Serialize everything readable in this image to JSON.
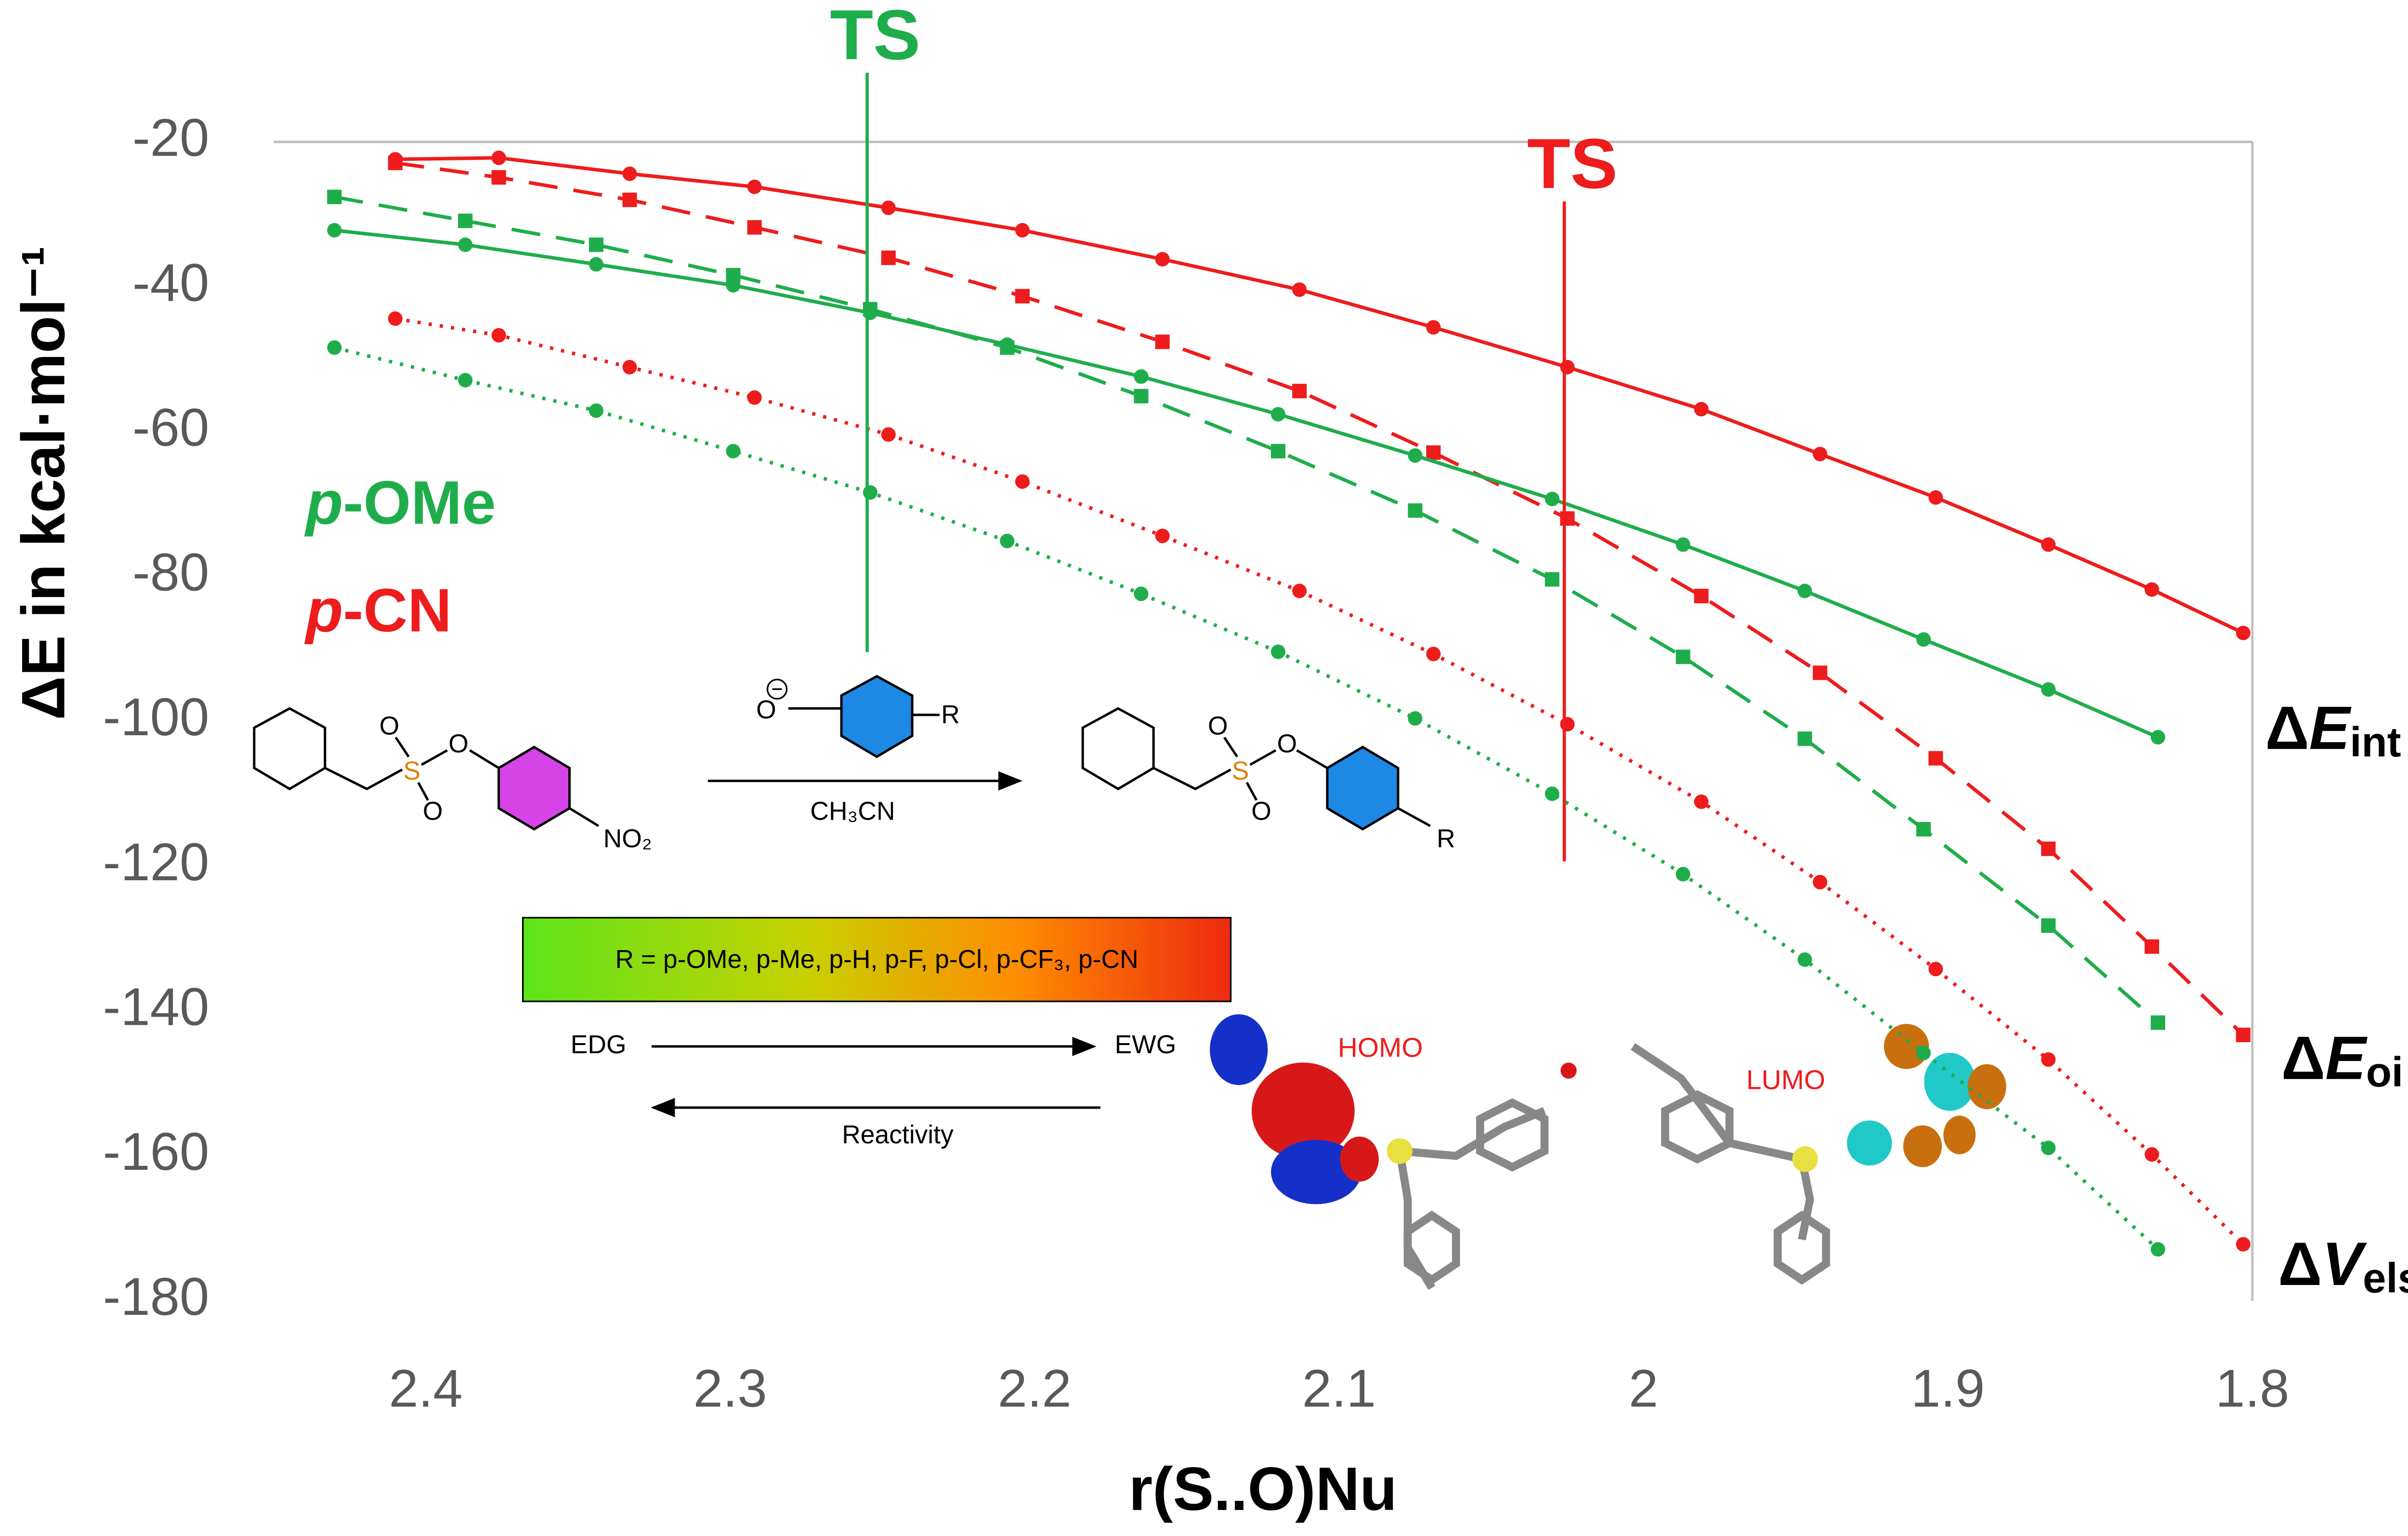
{
  "chart_data": {
    "type": "line",
    "x_label": "r(S..O)Nu",
    "y_label": "ΔE in kcal·mol⁻¹",
    "xlim": [
      2.45,
      1.8
    ],
    "xticks": [
      2.4,
      2.3,
      2.2,
      2.1,
      2,
      1.9,
      1.8
    ],
    "ylim": [
      -180,
      -20
    ],
    "yticks": [
      -180,
      -160,
      -140,
      -120,
      -100,
      -80,
      -60,
      -40,
      -20
    ],
    "grid": false,
    "series": [
      {
        "color": "#ee1c1c",
        "style": "solid",
        "marker": "circle",
        "x": [
          2.41,
          2.376,
          2.333,
          2.292,
          2.248,
          2.204,
          2.158,
          2.113,
          2.069,
          2.025,
          1.981,
          1.942,
          1.904,
          1.867,
          1.833,
          1.803
        ],
        "values": [
          -22.4,
          -22.2,
          -24.4,
          -26.2,
          -29.1,
          -32.2,
          -36.2,
          -40.4,
          -45.6,
          -51.1,
          -56.9,
          -63.1,
          -69.1,
          -75.6,
          -81.8,
          -87.8
        ]
      },
      {
        "color": "#ee1c1c",
        "style": "dashed",
        "marker": "square",
        "x": [
          2.41,
          2.376,
          2.333,
          2.292,
          2.248,
          2.204,
          2.158,
          2.113,
          2.069,
          2.025,
          1.981,
          1.942,
          1.904,
          1.867,
          1.833,
          1.803
        ],
        "values": [
          -22.9,
          -24.9,
          -28.0,
          -31.8,
          -36.0,
          -41.3,
          -47.6,
          -54.4,
          -62.9,
          -72.0,
          -82.7,
          -93.3,
          -105.1,
          -117.6,
          -131.1,
          -143.3
        ]
      },
      {
        "color": "#ee1c1c",
        "style": "dotted",
        "marker": "circle",
        "x": [
          2.41,
          2.376,
          2.333,
          2.292,
          2.248,
          2.204,
          2.158,
          2.113,
          2.069,
          2.025,
          1.981,
          1.942,
          1.904,
          1.867,
          1.833,
          1.803
        ],
        "values": [
          -44.4,
          -46.7,
          -51.1,
          -55.3,
          -60.4,
          -66.9,
          -74.4,
          -82.0,
          -90.7,
          -100.4,
          -111.1,
          -122.2,
          -134.2,
          -146.7,
          -159.8,
          -172.2
        ]
      },
      {
        "color": "#1fad4b",
        "style": "solid",
        "marker": "circle",
        "x": [
          2.43,
          2.387,
          2.344,
          2.299,
          2.254,
          2.209,
          2.165,
          2.12,
          2.075,
          2.03,
          1.987,
          1.947,
          1.908,
          1.867,
          1.831
        ],
        "values": [
          -32.2,
          -34.2,
          -36.9,
          -39.8,
          -43.6,
          -48.0,
          -52.4,
          -57.6,
          -63.3,
          -69.3,
          -75.6,
          -82.0,
          -88.7,
          -95.6,
          -102.2
        ]
      },
      {
        "color": "#1fad4b",
        "style": "dashed",
        "marker": "square",
        "x": [
          2.43,
          2.387,
          2.344,
          2.299,
          2.254,
          2.209,
          2.165,
          2.12,
          2.075,
          2.03,
          1.987,
          1.947,
          1.908,
          1.867,
          1.831
        ],
        "values": [
          -27.6,
          -30.9,
          -34.2,
          -38.4,
          -43.1,
          -48.4,
          -55.1,
          -62.7,
          -70.9,
          -80.4,
          -91.1,
          -102.4,
          -114.9,
          -128.2,
          -141.6
        ]
      },
      {
        "color": "#1fad4b",
        "style": "dotted",
        "marker": "circle",
        "x": [
          2.43,
          2.387,
          2.344,
          2.299,
          2.254,
          2.209,
          2.165,
          2.12,
          2.075,
          2.03,
          1.987,
          1.947,
          1.908,
          1.867,
          1.831
        ],
        "values": [
          -48.4,
          -52.9,
          -57.1,
          -62.7,
          -68.4,
          -75.1,
          -82.4,
          -90.4,
          -99.6,
          -110.0,
          -121.1,
          -132.9,
          -145.8,
          -158.9,
          -172.9
        ]
      }
    ],
    "ts_lines": [
      {
        "label": "TS",
        "x": 2.255,
        "color": "#1fad4b"
      },
      {
        "label": "TS",
        "x": 2.026,
        "color": "#ee1c1c"
      }
    ],
    "group_labels": [
      {
        "prefix": "p",
        "text": "-OMe",
        "color": "#1fad4b"
      },
      {
        "prefix": "p",
        "text": "-CN",
        "color": "#ee1c1c"
      }
    ],
    "curve_labels": [
      {
        "delta": "Δ",
        "var": "E",
        "sub": "int"
      },
      {
        "delta": "Δ",
        "var": "E",
        "sub": "oi"
      },
      {
        "delta": "Δ",
        "var": "V",
        "sub": "elstat"
      }
    ]
  },
  "scheme": {
    "reactant": {
      "s": "S",
      "o1": "O",
      "o2": "O",
      "o3": "O",
      "no2": "NO₂"
    },
    "nucleophile": {
      "o": "O",
      "r": "R"
    },
    "solvent": "CH₃CN",
    "product": {
      "s": "S",
      "o1": "O",
      "o2": "O",
      "o3": "O",
      "r": "R"
    },
    "colorbar": "R = p-OMe, p-Me, p-H, p-F, p-Cl, p-CF₃, p-CN",
    "edg": "EDG",
    "ewg": "EWG",
    "reactivity": "Reactivity",
    "homo": "HOMO",
    "lumo": "LUMO"
  }
}
